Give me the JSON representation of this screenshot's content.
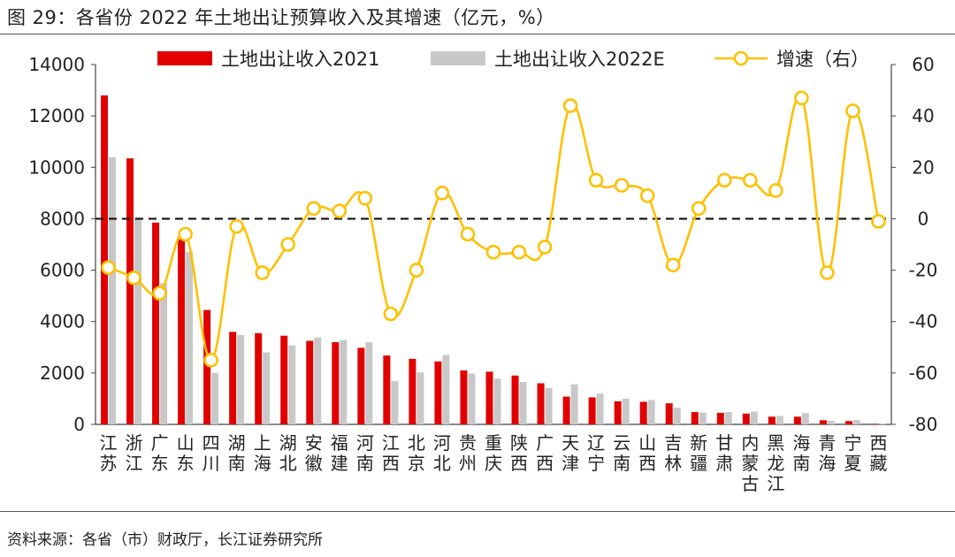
{
  "header": {
    "title": "图 29：各省份 2022 年土地出让预算收入及其增速（亿元，%）"
  },
  "footer": {
    "source": "资料来源：各省（市）财政厅，长江证券研究所"
  },
  "chart_data": {
    "type": "bar",
    "title": "各省份 2022 年土地出让预算收入及其增速（亿元，%）",
    "categories": [
      "江苏",
      "浙江",
      "广东",
      "山东",
      "四川",
      "湖南",
      "上海",
      "湖北",
      "安徽",
      "福建",
      "河南",
      "江西",
      "北京",
      "河北",
      "贵州",
      "重庆",
      "陕西",
      "广西",
      "天津",
      "辽宁",
      "云南",
      "山西",
      "吉林",
      "新疆",
      "甘肃",
      "内蒙古",
      "黑龙江",
      "海南",
      "青海",
      "宁夏",
      "西藏"
    ],
    "series": [
      {
        "name": "土地出让收入2021",
        "type": "bar",
        "axis": "left",
        "color": "#e10000",
        "values": [
          12800,
          10350,
          7850,
          7200,
          4450,
          3600,
          3550,
          3450,
          3250,
          3200,
          2980,
          2680,
          2550,
          2450,
          2100,
          2050,
          1900,
          1600,
          1080,
          1050,
          900,
          880,
          820,
          480,
          450,
          420,
          300,
          300,
          160,
          130,
          20
        ]
      },
      {
        "name": "土地出让收入2022E",
        "type": "bar",
        "axis": "left",
        "color": "#c8c8c8",
        "values": [
          10400,
          8000,
          5500,
          6700,
          2000,
          3480,
          2800,
          3080,
          3380,
          3280,
          3200,
          1680,
          2020,
          2700,
          1980,
          1780,
          1650,
          1420,
          1560,
          1200,
          1000,
          950,
          650,
          460,
          480,
          500,
          330,
          440,
          140,
          170,
          25
        ]
      },
      {
        "name": "增速（右）",
        "type": "line",
        "axis": "right",
        "color": "#ffc000",
        "values": [
          -19,
          -23,
          -29,
          -6,
          -55,
          -3,
          -21,
          -10,
          4,
          3,
          8,
          -37,
          -20,
          10,
          -6,
          -13,
          -13,
          -11,
          44,
          15,
          13,
          9,
          -18,
          4,
          15,
          15,
          11,
          47,
          -21,
          42,
          -1
        ]
      }
    ],
    "ylim": [
      0,
      14000
    ],
    "yticks": [
      0,
      2000,
      4000,
      6000,
      8000,
      10000,
      12000,
      14000
    ],
    "ylim_right": [
      -80,
      60
    ],
    "yticks_right": [
      -80,
      -60,
      -40,
      -20,
      0,
      20,
      40,
      60
    ],
    "reference_line_right": 0,
    "legend_position": "top",
    "xlabel": "",
    "ylabel": "",
    "ylabel_right": ""
  }
}
